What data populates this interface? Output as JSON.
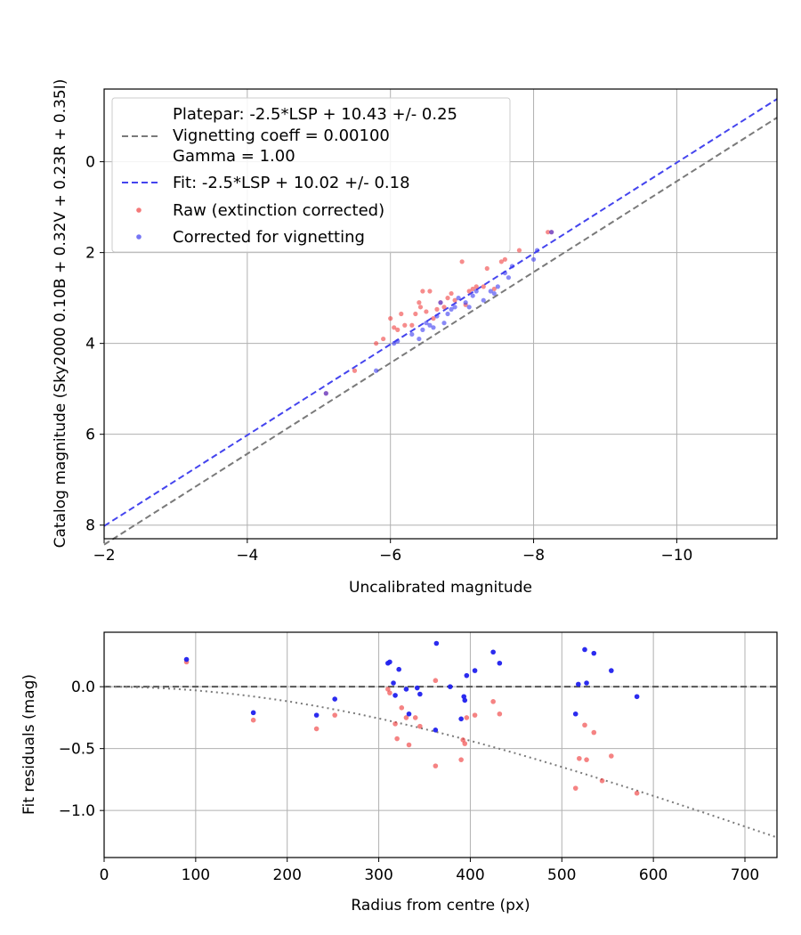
{
  "chart_data": [
    {
      "type": "scatter",
      "title": "",
      "xlabel": "Uncalibrated magnitude",
      "ylabel": "Catalog magnitude (Sky2000 0.10B + 0.32V + 0.23R + 0.35I)",
      "xlim": [
        -2.0,
        -11.4
      ],
      "ylim": [
        8.3,
        -1.6
      ],
      "x_inverted": true,
      "y_inverted": true,
      "grid": true,
      "legend_placement": "top-left",
      "xticks": [
        -2,
        -4,
        -6,
        -8,
        -10
      ],
      "xtick_labels": [
        "−2",
        "−4",
        "−6",
        "−8",
        "−10"
      ],
      "yticks": [
        0,
        2,
        4,
        6,
        8
      ],
      "ytick_labels": [
        "0",
        "2",
        "4",
        "6",
        "8"
      ],
      "lines": [
        {
          "name": "Platepar: -2.5*LSP + 10.43 +/- 0.25",
          "name_line2": "Vignetting coeff = 0.00100",
          "name_line3": "Gamma = 1.00",
          "color": "#7a7a7a",
          "style": "dashed",
          "x": [
            -2.0,
            -11.4
          ],
          "y": [
            8.43,
            -0.97
          ]
        },
        {
          "name": "Fit: -2.5*LSP + 10.02 +/- 0.18",
          "color": "#4444ee",
          "style": "dashed",
          "x": [
            -2.0,
            -11.4
          ],
          "y": [
            8.02,
            -1.38
          ]
        }
      ],
      "series": [
        {
          "name": "Raw (extinction corrected)",
          "color": "#f04040",
          "points": [
            [
              -5.1,
              5.1
            ],
            [
              -5.5,
              4.6
            ],
            [
              -5.8,
              4.0
            ],
            [
              -5.9,
              3.9
            ],
            [
              -6.0,
              3.45
            ],
            [
              -6.05,
              3.65
            ],
            [
              -6.1,
              3.7
            ],
            [
              -6.15,
              3.35
            ],
            [
              -6.2,
              3.6
            ],
            [
              -6.3,
              3.6
            ],
            [
              -6.35,
              3.35
            ],
            [
              -6.4,
              3.1
            ],
            [
              -6.42,
              3.2
            ],
            [
              -6.45,
              2.85
            ],
            [
              -6.5,
              3.3
            ],
            [
              -6.55,
              2.85
            ],
            [
              -6.6,
              3.45
            ],
            [
              -6.65,
              3.25
            ],
            [
              -6.7,
              3.1
            ],
            [
              -6.75,
              3.2
            ],
            [
              -6.8,
              3.0
            ],
            [
              -6.85,
              2.9
            ],
            [
              -6.9,
              3.05
            ],
            [
              -7.0,
              2.2
            ],
            [
              -7.05,
              3.15
            ],
            [
              -7.1,
              2.85
            ],
            [
              -7.15,
              2.8
            ],
            [
              -7.2,
              2.75
            ],
            [
              -7.3,
              2.75
            ],
            [
              -7.35,
              2.35
            ],
            [
              -7.45,
              2.8
            ],
            [
              -7.55,
              2.2
            ],
            [
              -7.6,
              2.15
            ],
            [
              -7.8,
              1.95
            ],
            [
              -8.2,
              1.55
            ],
            [
              -8.25,
              1.55
            ]
          ]
        },
        {
          "name": "Corrected for vignetting",
          "color": "#3b3bf0",
          "points": [
            [
              -5.1,
              5.1
            ],
            [
              -5.8,
              4.6
            ],
            [
              -6.05,
              4.0
            ],
            [
              -6.1,
              3.95
            ],
            [
              -6.3,
              3.8
            ],
            [
              -6.4,
              3.9
            ],
            [
              -6.45,
              3.7
            ],
            [
              -6.5,
              3.55
            ],
            [
              -6.55,
              3.6
            ],
            [
              -6.6,
              3.65
            ],
            [
              -6.65,
              3.4
            ],
            [
              -6.7,
              3.1
            ],
            [
              -6.75,
              3.55
            ],
            [
              -6.8,
              3.35
            ],
            [
              -6.85,
              3.25
            ],
            [
              -6.9,
              3.2
            ],
            [
              -6.95,
              3.0
            ],
            [
              -7.05,
              3.1
            ],
            [
              -7.1,
              3.2
            ],
            [
              -7.15,
              2.95
            ],
            [
              -7.2,
              2.85
            ],
            [
              -7.3,
              3.05
            ],
            [
              -7.4,
              2.85
            ],
            [
              -7.45,
              2.9
            ],
            [
              -7.5,
              2.75
            ],
            [
              -7.6,
              2.45
            ],
            [
              -7.65,
              2.55
            ],
            [
              -7.7,
              2.3
            ],
            [
              -8.0,
              2.15
            ],
            [
              -8.05,
              1.95
            ],
            [
              -8.25,
              1.55
            ]
          ]
        }
      ]
    },
    {
      "type": "scatter",
      "title": "",
      "xlabel": "Radius from centre (px)",
      "ylabel": "Fit residuals (mag)",
      "xlim": [
        0,
        735
      ],
      "ylim": [
        -1.38,
        0.44
      ],
      "grid": true,
      "xticks": [
        0,
        100,
        200,
        300,
        400,
        500,
        600,
        700
      ],
      "xtick_labels": [
        "0",
        "100",
        "200",
        "300",
        "400",
        "500",
        "600",
        "700"
      ],
      "yticks": [
        0.0,
        -0.5,
        -1.0
      ],
      "ytick_labels": [
        "0.0",
        "−0.5",
        "−1.0"
      ],
      "reference_lines": [
        {
          "style": "dashed",
          "color": "#555555",
          "x": [
            0,
            735
          ],
          "y": [
            0,
            0
          ]
        }
      ],
      "vignetting_curve": {
        "style": "dotted",
        "color": "#7a7a7a",
        "coeff": 0.001,
        "offset": 0.1
      },
      "series": [
        {
          "name": "Raw (extinction corrected)",
          "color": "#f04040",
          "points": [
            [
              90,
              0.2
            ],
            [
              163,
              -0.27
            ],
            [
              232,
              -0.34
            ],
            [
              252,
              -0.23
            ],
            [
              310,
              -0.02
            ],
            [
              312,
              -0.05
            ],
            [
              318,
              -0.3
            ],
            [
              320,
              -0.42
            ],
            [
              325,
              -0.17
            ],
            [
              330,
              -0.25
            ],
            [
              333,
              -0.47
            ],
            [
              340,
              -0.25
            ],
            [
              345,
              -0.32
            ],
            [
              362,
              0.05
            ],
            [
              362,
              -0.64
            ],
            [
              390,
              -0.59
            ],
            [
              392,
              -0.43
            ],
            [
              394,
              -0.46
            ],
            [
              396,
              -0.25
            ],
            [
              405,
              -0.23
            ],
            [
              425,
              -0.12
            ],
            [
              432,
              -0.22
            ],
            [
              515,
              -0.82
            ],
            [
              519,
              -0.58
            ],
            [
              525,
              -0.31
            ],
            [
              527,
              -0.59
            ],
            [
              535,
              -0.37
            ],
            [
              544,
              -0.76
            ],
            [
              554,
              -0.56
            ],
            [
              582,
              -0.86
            ]
          ]
        },
        {
          "name": "Corrected for vignetting",
          "color": "#2020ee",
          "points": [
            [
              90,
              0.22
            ],
            [
              163,
              -0.21
            ],
            [
              232,
              -0.23
            ],
            [
              252,
              -0.1
            ],
            [
              310,
              0.19
            ],
            [
              312,
              0.2
            ],
            [
              316,
              0.03
            ],
            [
              318,
              -0.07
            ],
            [
              322,
              0.14
            ],
            [
              330,
              -0.02
            ],
            [
              333,
              -0.22
            ],
            [
              342,
              -0.01
            ],
            [
              345,
              -0.06
            ],
            [
              362,
              -0.35
            ],
            [
              363,
              0.35
            ],
            [
              378,
              0.0
            ],
            [
              390,
              -0.26
            ],
            [
              393,
              -0.08
            ],
            [
              394,
              -0.11
            ],
            [
              396,
              0.09
            ],
            [
              405,
              0.13
            ],
            [
              425,
              0.28
            ],
            [
              432,
              0.19
            ],
            [
              515,
              -0.22
            ],
            [
              518,
              0.02
            ],
            [
              525,
              0.3
            ],
            [
              527,
              0.03
            ],
            [
              535,
              0.27
            ],
            [
              554,
              0.13
            ],
            [
              582,
              -0.08
            ]
          ]
        }
      ]
    }
  ]
}
